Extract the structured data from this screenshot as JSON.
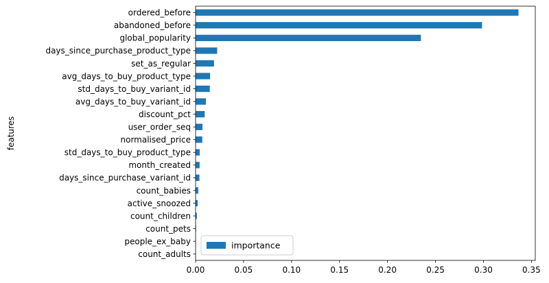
{
  "chart_data": {
    "type": "bar",
    "orientation": "horizontal",
    "categories": [
      "count_adults",
      "people_ex_baby",
      "count_pets",
      "count_children",
      "active_snoozed",
      "count_babies",
      "days_since_purchase_variant_id",
      "month_created",
      "std_days_to_buy_product_type",
      "normalised_price",
      "user_order_seq",
      "discount_pct",
      "avg_days_to_buy_variant_id",
      "std_days_to_buy_variant_id",
      "avg_days_to_buy_product_type",
      "set_as_regular",
      "days_since_purchase_product_type",
      "global_popularity",
      "abandoned_before",
      "ordered_before"
    ],
    "series": [
      {
        "name": "importance",
        "color": "#1f77b4",
        "values": [
          0.0001,
          0.0003,
          0.0005,
          0.0013,
          0.0022,
          0.0028,
          0.004,
          0.0042,
          0.0043,
          0.007,
          0.0072,
          0.0095,
          0.0108,
          0.0148,
          0.0151,
          0.0192,
          0.0225,
          0.2348,
          0.2985,
          0.3365
        ]
      }
    ],
    "title": "",
    "xlabel": "",
    "ylabel": "features",
    "xlim": [
      0,
      0.354
    ],
    "xticks": [
      0.0,
      0.05,
      0.1,
      0.15,
      0.2,
      0.25,
      0.3,
      0.35
    ],
    "xtick_labels": [
      "0.00",
      "0.05",
      "0.10",
      "0.15",
      "0.20",
      "0.25",
      "0.30",
      "0.35"
    ],
    "grid": false,
    "legend": {
      "position": "bottom-left",
      "entries": [
        "importance"
      ]
    }
  }
}
